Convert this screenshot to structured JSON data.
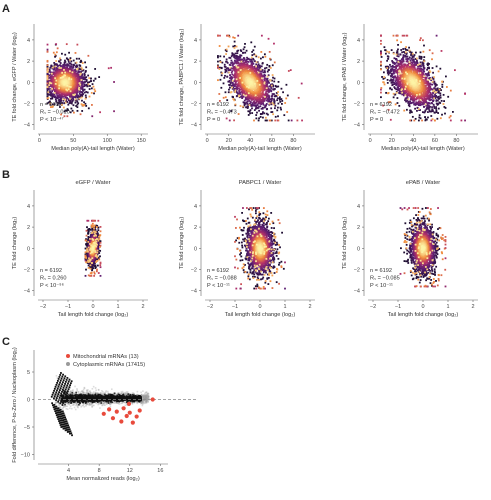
{
  "panel_labels": [
    "A",
    "B",
    "C"
  ],
  "colors": {
    "density_low": "#1a0b2e",
    "density_mid1": "#5b1e72",
    "density_mid2": "#b3306a",
    "density_mid3": "#f08a3c",
    "density_high": "#fdf4a6",
    "gray_points": "#9a9a9a",
    "black_points": "#111111",
    "red_points": "#e84a3c",
    "dashed_line": "#888888"
  },
  "chart_data": [
    {
      "id": "A1",
      "type": "scatter",
      "panel": "A",
      "title": "",
      "xlabel": "Median poly(A)-tail length (Water)",
      "ylabel": "TE fold change, eGFP / Water (log₂)",
      "xlim": [
        -2,
        160
      ],
      "ylim": [
        -4.5,
        5.5
      ],
      "xticks": [
        0,
        50,
        100,
        150
      ],
      "xticklabels": [
        "0",
        "50",
        "100",
        "150"
      ],
      "yticks": [
        -4,
        -2,
        0,
        2,
        4
      ],
      "yticklabels": [
        "−4",
        "−2",
        "0",
        "2",
        "4"
      ],
      "stats": {
        "n": "n = 6192",
        "rho": "Rₛ = −0.010",
        "p": "P < 10⁻⁴⁷"
      },
      "cloud": {
        "center_x": 38,
        "center_y": 0.0,
        "sd_x": 15,
        "sd_y": 0.9,
        "corr": -0.05,
        "spread_x": [
          12,
          110
        ],
        "spread_y": [
          -3.2,
          3.6
        ]
      }
    },
    {
      "id": "A2",
      "type": "scatter",
      "panel": "A",
      "title": "",
      "xlabel": "Median poly(A)-tail length (Water)",
      "ylabel": "TE fold change, PABPC1 / Water (log₂)",
      "xlim": [
        -2,
        100
      ],
      "ylim": [
        -4.5,
        5.5
      ],
      "xticks": [
        0,
        20,
        40,
        60,
        80
      ],
      "xticklabels": [
        "0",
        "20",
        "40",
        "60",
        "80"
      ],
      "yticks": [
        -4,
        -2,
        0,
        2,
        4
      ],
      "yticklabels": [
        "−4",
        "−2",
        "0",
        "2",
        "4"
      ],
      "stats": {
        "n": "n = 6192",
        "rho": "Rₛ = −0.473",
        "p": "P = 0"
      },
      "cloud": {
        "center_x": 40,
        "center_y": 0.0,
        "sd_x": 11,
        "sd_y": 1.3,
        "corr": -0.47,
        "spread_x": [
          10,
          88
        ],
        "spread_y": [
          -3.6,
          4.4
        ]
      }
    },
    {
      "id": "A3",
      "type": "scatter",
      "panel": "A",
      "title": "",
      "xlabel": "Median poly(A)-tail length (Water)",
      "ylabel": "TE fold change, ePAB / Water (log₂)",
      "xlim": [
        -2,
        100
      ],
      "ylim": [
        -4.5,
        5.5
      ],
      "xticks": [
        0,
        20,
        40,
        60,
        80
      ],
      "xticklabels": [
        "0",
        "20",
        "40",
        "60",
        "80"
      ],
      "yticks": [
        -4,
        -2,
        0,
        2,
        4
      ],
      "yticklabels": [
        "−4",
        "−2",
        "0",
        "2",
        "4"
      ],
      "stats": {
        "n": "n = 6192",
        "rho": "Rₛ = −0.472",
        "p": "P = 0"
      },
      "cloud": {
        "center_x": 40,
        "center_y": 0.0,
        "sd_x": 11,
        "sd_y": 1.3,
        "corr": -0.47,
        "spread_x": [
          10,
          88
        ],
        "spread_y": [
          -3.6,
          4.4
        ]
      }
    },
    {
      "id": "B1",
      "type": "scatter",
      "panel": "B",
      "title": "eGFP / Water",
      "xlabel": "Tail length fold change (log₂)",
      "ylabel": "TE fold change (log₂)",
      "xlim": [
        -2.2,
        2.2
      ],
      "ylim": [
        -4.5,
        5.5
      ],
      "xticks": [
        -2,
        -1,
        0,
        1,
        2
      ],
      "xticklabels": [
        "−2",
        "−1",
        "0",
        "1",
        "2"
      ],
      "yticks": [
        -4,
        -2,
        0,
        2,
        4
      ],
      "yticklabels": [
        "−4",
        "−2",
        "0",
        "2",
        "4"
      ],
      "stats": {
        "n": "n = 6192",
        "rho": "Rₛ = 0.260",
        "p": "P < 10⁻⁹⁶"
      },
      "cloud": {
        "center_x": 0.0,
        "center_y": 0.0,
        "sd_x": 0.1,
        "sd_y": 0.75,
        "corr": 0.26,
        "spread_x": [
          -0.3,
          0.3
        ],
        "spread_y": [
          -2.6,
          2.6
        ]
      }
    },
    {
      "id": "B2",
      "type": "scatter",
      "panel": "B",
      "title": "PABPC1 / Water",
      "xlabel": "Tail length fold change (log₂)",
      "ylabel": "TE fold change (log₂)",
      "xlim": [
        -2.2,
        2.2
      ],
      "ylim": [
        -4.5,
        5.5
      ],
      "xticks": [
        -2,
        -1,
        0,
        1,
        2
      ],
      "xticklabels": [
        "−2",
        "−1",
        "0",
        "1",
        "2"
      ],
      "yticks": [
        -4,
        -2,
        0,
        2,
        4
      ],
      "yticklabels": [
        "−4",
        "−2",
        "0",
        "2",
        "4"
      ],
      "stats": {
        "n": "n = 6192",
        "rho": "Rₛ = −0.088",
        "p": "P < 10⁻¹¹"
      },
      "cloud": {
        "center_x": 0.0,
        "center_y": 0.0,
        "sd_x": 0.28,
        "sd_y": 1.2,
        "corr": -0.09,
        "spread_x": [
          -1.0,
          1.0
        ],
        "spread_y": [
          -3.8,
          3.8
        ]
      }
    },
    {
      "id": "B3",
      "type": "scatter",
      "panel": "B",
      "title": "ePAB / Water",
      "xlabel": "Tail length fold change (log₂)",
      "ylabel": "TE fold change (log₂)",
      "xlim": [
        -2.2,
        2.2
      ],
      "ylim": [
        -4.5,
        5.5
      ],
      "xticks": [
        -2,
        -1,
        0,
        1,
        2
      ],
      "xticklabels": [
        "−2",
        "−1",
        "0",
        "1",
        "2"
      ],
      "yticks": [
        -4,
        -2,
        0,
        2,
        4
      ],
      "yticklabels": [
        "−4",
        "−2",
        "0",
        "2",
        "4"
      ],
      "stats": {
        "n": "n = 6192",
        "rho": "Rₛ = −0.085",
        "p": "P < 10⁻¹¹"
      },
      "cloud": {
        "center_x": 0.0,
        "center_y": 0.0,
        "sd_x": 0.25,
        "sd_y": 1.15,
        "corr": -0.08,
        "spread_x": [
          -0.9,
          0.9
        ],
        "spread_y": [
          -3.6,
          3.8
        ]
      }
    },
    {
      "id": "C",
      "type": "scatter",
      "panel": "C",
      "title": "",
      "xlabel": "Mean normalized reads (log₂)",
      "ylabel": "Fold difference, P-to-Zero / Nucleoplasm (log₂)",
      "xlim": [
        0,
        17
      ],
      "ylim": [
        -11,
        9
      ],
      "xticks": [
        4,
        8,
        12,
        16
      ],
      "xticklabels": [
        "4",
        "8",
        "12",
        "16"
      ],
      "yticks": [
        -10,
        -5,
        0,
        5
      ],
      "yticklabels": [
        "−10",
        "−5",
        "0",
        "5"
      ],
      "hline": 0,
      "legend": [
        {
          "label": "Mitochondrial mRNAs (13)",
          "color": "#e84a3c"
        },
        {
          "label": "Cytoplasmic mRNAs (17415)",
          "color": "#9a9a9a"
        }
      ],
      "red_points": [
        {
          "x": 8.6,
          "y": -2.6
        },
        {
          "x": 9.3,
          "y": -1.8
        },
        {
          "x": 9.8,
          "y": -3.4
        },
        {
          "x": 10.3,
          "y": -2.2
        },
        {
          "x": 10.9,
          "y": -4.0
        },
        {
          "x": 11.2,
          "y": -1.6
        },
        {
          "x": 11.6,
          "y": -3.0
        },
        {
          "x": 12.0,
          "y": -2.4
        },
        {
          "x": 12.4,
          "y": -4.2
        },
        {
          "x": 12.9,
          "y": -3.1
        },
        {
          "x": 13.3,
          "y": -2.0
        },
        {
          "x": 11.9,
          "y": -0.8
        },
        {
          "x": 15.0,
          "y": 0.0
        }
      ]
    }
  ]
}
